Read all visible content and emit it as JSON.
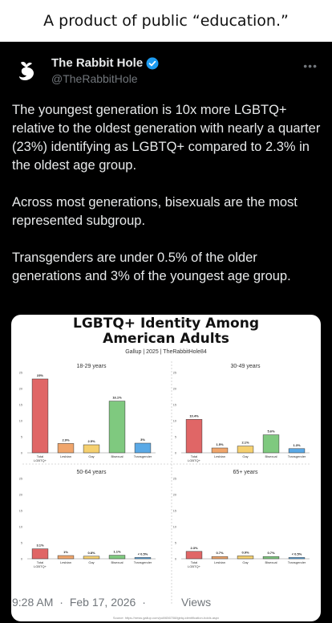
{
  "caption": "A product of public “education.”",
  "author": {
    "name": "The Rabbit Hole",
    "handle": "@TheRabbitHole"
  },
  "post": {
    "paragraphs": [
      "The youngest generation is 10x more LGBTQ+ relative to the oldest generation with nearly a quarter (23%) identifying as LGBTQ+ compared to 2.3% in the oldest age group.",
      "Across most generations, bisexuals are the most represented subgroup.",
      "Transgenders are under 0.5% of the older generations and 3% of the youngest age group."
    ]
  },
  "meta": {
    "time": "9:28 AM",
    "date": "Feb 17, 2026",
    "separator": "·",
    "views_label": "Views"
  },
  "colors": {
    "total": "#e06666",
    "lesbian": "#f0a56b",
    "gay": "#f5d06f",
    "bisexual": "#7fc97f",
    "transgender": "#5aa9e6"
  },
  "icons": {
    "avatar": "rabbit-logo",
    "verified": "verified-badge-icon",
    "more": "more-icon"
  },
  "media": {
    "title_line1": "LGBTQ+ Identity Among",
    "title_line2": "American Adults",
    "subtitle": "Gallup | 2025 | TheRabbitHole84",
    "source": "Source: https://news.gallup.com/poll/656708/lgbtq-identification-holds.aspx"
  },
  "chart_data": [
    {
      "type": "bar",
      "title": "18-29 years",
      "categories": [
        "Total LGBTQ+",
        "Lesbian",
        "Gay",
        "Bisexual",
        "Transgender"
      ],
      "values": [
        23,
        2.9,
        2.5,
        16.1,
        3
      ],
      "labels": [
        "23%",
        "2.9%",
        "2.5%",
        "16.1%",
        "3%"
      ],
      "ylim": [
        0,
        25
      ],
      "yticks": [
        0,
        5,
        10,
        15,
        20,
        25
      ]
    },
    {
      "type": "bar",
      "title": "30-49 years",
      "categories": [
        "Total LGBTQ+",
        "Lesbian",
        "Gay",
        "Bisexual",
        "Transgender"
      ],
      "values": [
        10.4,
        1.5,
        2.1,
        5.6,
        1.3
      ],
      "labels": [
        "10.4%",
        "1.5%",
        "2.1%",
        "5.6%",
        "1.3%"
      ],
      "ylim": [
        0,
        25
      ],
      "yticks": [
        0,
        5,
        10,
        15,
        20,
        25
      ]
    },
    {
      "type": "bar",
      "title": "50-64 years",
      "categories": [
        "Total LGBTQ+",
        "Lesbian",
        "Gay",
        "Bisexual",
        "Transgender"
      ],
      "values": [
        3.1,
        1,
        0.8,
        1.1,
        0.4
      ],
      "labels": [
        "3.1%",
        "1%",
        "0.8%",
        "1.1%",
        "< 0.5%"
      ],
      "ylim": [
        0,
        25
      ],
      "yticks": [
        0,
        5,
        10,
        15,
        20,
        25
      ]
    },
    {
      "type": "bar",
      "title": "65+ years",
      "categories": [
        "Total LGBTQ+",
        "Lesbian",
        "Gay",
        "Bisexual",
        "Transgender"
      ],
      "values": [
        2.3,
        0.7,
        0.9,
        0.7,
        0.4
      ],
      "labels": [
        "2.3%",
        "0.7%",
        "0.9%",
        "0.7%",
        "< 0.5%"
      ],
      "ylim": [
        0,
        25
      ],
      "yticks": [
        0,
        5,
        10,
        15,
        20,
        25
      ]
    }
  ]
}
